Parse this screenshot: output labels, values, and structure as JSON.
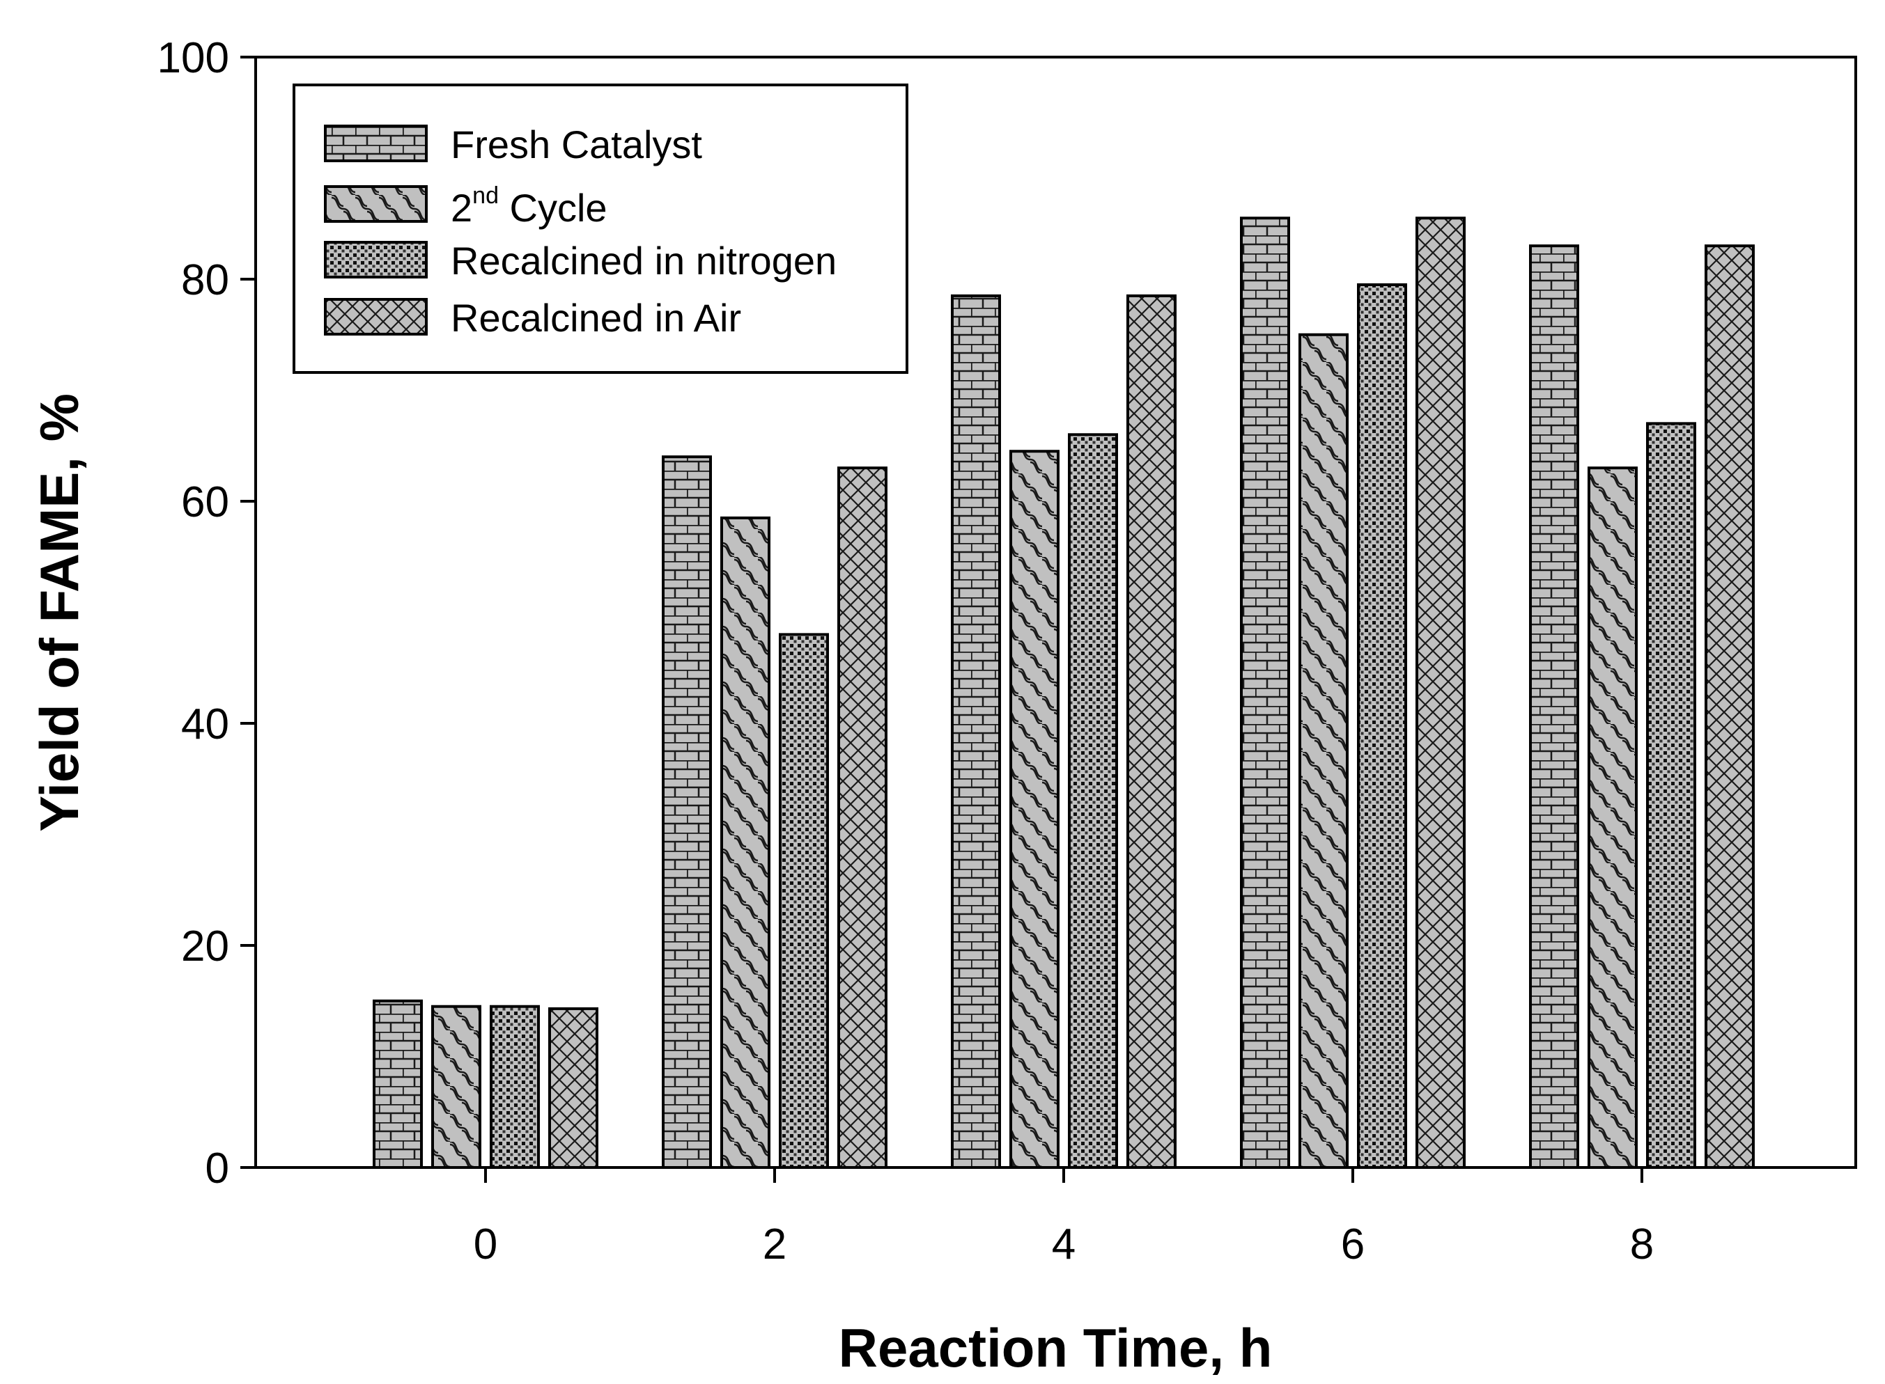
{
  "chart_data": {
    "type": "bar",
    "title": "",
    "xlabel": "Reaction Time, h",
    "ylabel": "Yield of FAME, %",
    "categories": [
      "0",
      "2",
      "4",
      "6",
      "8"
    ],
    "ylim": [
      0,
      100
    ],
    "yticks": [
      "0",
      "20",
      "40",
      "60",
      "80",
      "100"
    ],
    "grid": false,
    "legend_position": "top-left",
    "series": [
      {
        "name": "Fresh Catalyst",
        "pattern": "brick",
        "values": [
          15,
          64,
          78.5,
          85.5,
          83
        ]
      },
      {
        "name": "2nd Cycle",
        "label_main": "2",
        "label_sup": "nd",
        "label_tail": " Cycle",
        "pattern": "wave",
        "values": [
          14.5,
          58.5,
          64.5,
          75,
          63
        ]
      },
      {
        "name": "Recalcined in nitrogen",
        "pattern": "dots",
        "values": [
          14.5,
          48,
          66,
          79.5,
          67
        ]
      },
      {
        "name": "Recalcined in Air",
        "pattern": "crosshatch",
        "values": [
          14.3,
          63,
          78.5,
          85.5,
          83
        ]
      }
    ],
    "colors": {
      "bar_fill": "#c0c0c0",
      "pattern_stroke": "#1a1a1a",
      "outline": "#000000"
    }
  }
}
